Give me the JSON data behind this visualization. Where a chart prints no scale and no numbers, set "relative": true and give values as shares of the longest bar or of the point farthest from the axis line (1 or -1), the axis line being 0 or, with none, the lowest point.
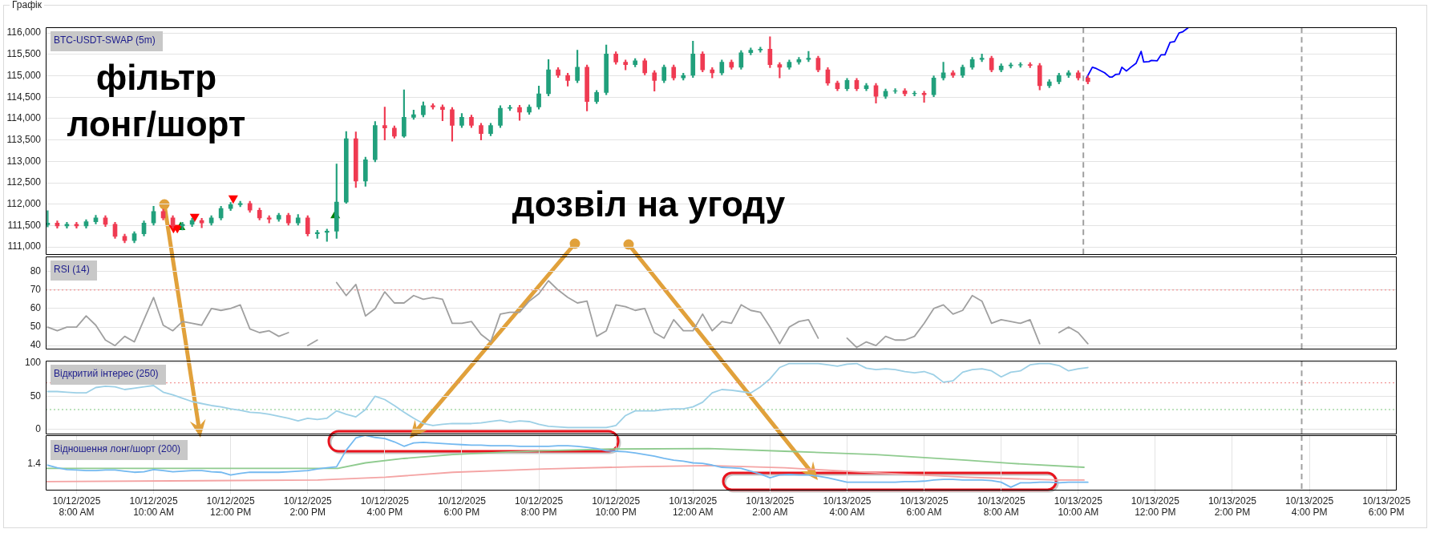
{
  "chart_data": [
    {
      "type": "candlestick",
      "title": "Графік",
      "subtitle": "BTC-USDT-SWAP (5m)",
      "x": [
        "2025-10-12T07:15",
        "2025-10-12T07:30",
        "2025-10-12T07:45",
        "2025-10-12T08:00",
        "2025-10-12T08:15",
        "2025-10-12T08:30",
        "2025-10-12T08:45",
        "2025-10-12T09:00",
        "2025-10-12T09:15",
        "2025-10-12T09:30",
        "2025-10-12T09:45",
        "2025-10-12T10:00",
        "2025-10-12T10:15",
        "2025-10-12T10:30",
        "2025-10-12T10:45",
        "2025-10-12T11:00",
        "2025-10-12T11:15",
        "2025-10-12T11:30",
        "2025-10-12T11:45",
        "2025-10-12T12:00",
        "2025-10-12T12:15",
        "2025-10-12T12:30",
        "2025-10-12T12:45",
        "2025-10-12T13:00",
        "2025-10-12T13:15",
        "2025-10-12T13:30",
        "2025-10-12T13:45",
        "2025-10-12T14:00",
        "2025-10-12T14:15",
        "2025-10-12T14:30",
        "2025-10-12T14:45",
        "2025-10-12T15:00",
        "2025-10-12T15:15",
        "2025-10-12T15:30",
        "2025-10-12T15:45",
        "2025-10-12T16:00",
        "2025-10-12T16:15",
        "2025-10-12T16:30",
        "2025-10-12T16:45",
        "2025-10-12T17:00",
        "2025-10-12T17:15",
        "2025-10-12T17:30",
        "2025-10-12T17:45",
        "2025-10-12T18:00",
        "2025-10-12T18:15",
        "2025-10-12T18:30",
        "2025-10-12T18:45",
        "2025-10-12T19:00",
        "2025-10-12T19:15",
        "2025-10-12T19:30",
        "2025-10-12T19:45",
        "2025-10-12T20:00",
        "2025-10-12T20:15",
        "2025-10-12T20:30",
        "2025-10-12T20:45",
        "2025-10-12T21:00",
        "2025-10-12T21:15",
        "2025-10-12T21:30",
        "2025-10-12T21:45",
        "2025-10-12T22:00",
        "2025-10-12T22:15",
        "2025-10-12T22:30",
        "2025-10-12T22:45",
        "2025-10-12T23:00",
        "2025-10-12T23:15",
        "2025-10-12T23:30",
        "2025-10-12T23:45",
        "2025-10-13T00:00",
        "2025-10-13T00:15",
        "2025-10-13T00:30",
        "2025-10-13T00:45",
        "2025-10-13T01:00",
        "2025-10-13T01:15",
        "2025-10-13T01:30",
        "2025-10-13T01:45",
        "2025-10-13T02:00",
        "2025-10-13T02:15",
        "2025-10-13T02:30",
        "2025-10-13T02:45",
        "2025-10-13T03:00",
        "2025-10-13T03:15",
        "2025-10-13T03:30",
        "2025-10-13T03:45",
        "2025-10-13T04:00",
        "2025-10-13T04:15",
        "2025-10-13T04:30",
        "2025-10-13T04:45",
        "2025-10-13T05:00",
        "2025-10-13T05:15",
        "2025-10-13T05:30",
        "2025-10-13T05:45",
        "2025-10-13T06:00",
        "2025-10-13T06:15",
        "2025-10-13T06:30",
        "2025-10-13T06:45",
        "2025-10-13T07:00",
        "2025-10-13T07:15",
        "2025-10-13T07:30",
        "2025-10-13T07:45",
        "2025-10-13T08:00",
        "2025-10-13T08:15",
        "2025-10-13T08:30",
        "2025-10-13T08:45",
        "2025-10-13T09:00",
        "2025-10-13T09:15",
        "2025-10-13T09:30",
        "2025-10-13T09:45",
        "2025-10-13T10:00",
        "2025-10-13T10:15"
      ],
      "ohlc": [
        [
          111520,
          111850,
          111470,
          111560
        ],
        [
          111560,
          111610,
          111440,
          111490
        ],
        [
          111490,
          111580,
          111440,
          111530
        ],
        [
          111530,
          111580,
          111440,
          111490
        ],
        [
          111490,
          111640,
          111440,
          111590
        ],
        [
          111590,
          111740,
          111540,
          111680
        ],
        [
          111680,
          111730,
          111480,
          111530
        ],
        [
          111530,
          111580,
          111200,
          111250
        ],
        [
          111250,
          111300,
          111100,
          111150
        ],
        [
          111150,
          111360,
          111100,
          111310
        ],
        [
          111310,
          111610,
          111260,
          111560
        ],
        [
          111560,
          111950,
          111510,
          111830
        ],
        [
          111830,
          111880,
          111630,
          111680
        ],
        [
          111680,
          111730,
          111440,
          111490
        ],
        [
          111490,
          111580,
          111400,
          111530
        ],
        [
          111530,
          111670,
          111480,
          111620
        ],
        [
          111620,
          111670,
          111450,
          111560
        ],
        [
          111560,
          111730,
          111510,
          111680
        ],
        [
          111680,
          111950,
          111630,
          111900
        ],
        [
          111900,
          112040,
          111850,
          111990
        ],
        [
          111990,
          112070,
          111940,
          112020
        ],
        [
          112020,
          112070,
          111810,
          111860
        ],
        [
          111860,
          111910,
          111630,
          111680
        ],
        [
          111680,
          111730,
          111560,
          111650
        ],
        [
          111650,
          111790,
          111600,
          111740
        ],
        [
          111740,
          111790,
          111510,
          111560
        ],
        [
          111560,
          111760,
          111510,
          111680
        ],
        [
          111680,
          111730,
          111260,
          111310
        ],
        [
          111310,
          111390,
          111200,
          111340
        ],
        [
          111340,
          111420,
          111130,
          111370
        ],
        [
          111370,
          112940,
          111200,
          112050
        ],
        [
          112050,
          113700,
          112020,
          113530
        ],
        [
          113530,
          113690,
          112390,
          112540
        ],
        [
          112540,
          113100,
          112420,
          113040
        ],
        [
          113040,
          113930,
          112990,
          113840
        ],
        [
          113840,
          114270,
          113500,
          113780
        ],
        [
          113780,
          113830,
          113540,
          113590
        ],
        [
          113590,
          114670,
          113560,
          114030
        ],
        [
          114030,
          114200,
          113980,
          114090
        ],
        [
          114090,
          114390,
          114040,
          114300
        ],
        [
          114300,
          114350,
          114220,
          114270
        ],
        [
          114270,
          114320,
          113950,
          114210
        ],
        [
          114210,
          114260,
          113470,
          113840
        ],
        [
          113840,
          114120,
          113790,
          114030
        ],
        [
          114030,
          114080,
          113790,
          113840
        ],
        [
          113840,
          113890,
          113500,
          113650
        ],
        [
          113650,
          113890,
          113600,
          113840
        ],
        [
          113840,
          114300,
          113790,
          114240
        ],
        [
          114240,
          114310,
          114190,
          114260
        ],
        [
          114260,
          114310,
          113960,
          114150
        ],
        [
          114150,
          114320,
          114100,
          114270
        ],
        [
          114270,
          114760,
          114220,
          114580
        ],
        [
          114580,
          115380,
          114530,
          115140
        ],
        [
          115140,
          115190,
          114960,
          115010
        ],
        [
          115010,
          115060,
          114760,
          114890
        ],
        [
          114890,
          115600,
          114840,
          115200
        ],
        [
          115200,
          115250,
          114180,
          114400
        ],
        [
          114400,
          114660,
          114350,
          114610
        ],
        [
          114610,
          115720,
          114560,
          115510
        ],
        [
          115510,
          115560,
          115270,
          115320
        ],
        [
          115320,
          115370,
          115140,
          115260
        ],
        [
          115260,
          115400,
          115210,
          115350
        ],
        [
          115350,
          115400,
          115020,
          115070
        ],
        [
          115070,
          115120,
          114640,
          114890
        ],
        [
          114890,
          115250,
          114840,
          115200
        ],
        [
          115200,
          115250,
          114900,
          114950
        ],
        [
          114950,
          115060,
          114900,
          115010
        ],
        [
          115010,
          115810,
          114960,
          115510
        ],
        [
          115510,
          115560,
          115090,
          115140
        ],
        [
          115140,
          115190,
          114950,
          115070
        ],
        [
          115070,
          115370,
          115020,
          115320
        ],
        [
          115320,
          115370,
          115150,
          115200
        ],
        [
          115200,
          115590,
          115150,
          115540
        ],
        [
          115540,
          115650,
          115490,
          115600
        ],
        [
          115600,
          115670,
          115550,
          115620
        ],
        [
          115620,
          115910,
          115190,
          115260
        ],
        [
          115260,
          115310,
          114950,
          115200
        ],
        [
          115200,
          115370,
          115150,
          115320
        ],
        [
          115320,
          115430,
          115270,
          115380
        ],
        [
          115380,
          115570,
          115330,
          115410
        ],
        [
          115410,
          115460,
          115090,
          115140
        ],
        [
          115140,
          115190,
          114780,
          114830
        ],
        [
          114830,
          114880,
          114650,
          114700
        ],
        [
          114700,
          114940,
          114650,
          114890
        ],
        [
          114890,
          114940,
          114650,
          114700
        ],
        [
          114700,
          114820,
          114650,
          114770
        ],
        [
          114770,
          114820,
          114360,
          114520
        ],
        [
          114520,
          114690,
          114470,
          114640
        ],
        [
          114640,
          114700,
          114590,
          114650
        ],
        [
          114650,
          114700,
          114530,
          114580
        ],
        [
          114580,
          114640,
          114530,
          114590
        ],
        [
          114590,
          114640,
          114380,
          114560
        ],
        [
          114560,
          115000,
          114510,
          114950
        ],
        [
          114950,
          115320,
          114900,
          115070
        ],
        [
          115070,
          115120,
          114960,
          115010
        ],
        [
          115010,
          115250,
          114960,
          115200
        ],
        [
          115200,
          115430,
          115150,
          115380
        ],
        [
          115380,
          115510,
          115330,
          115410
        ],
        [
          115410,
          115460,
          115090,
          115140
        ],
        [
          115140,
          115280,
          115090,
          115230
        ],
        [
          115230,
          115300,
          115180,
          115250
        ],
        [
          115250,
          115310,
          115200,
          115260
        ],
        [
          115260,
          115310,
          115190,
          115240
        ],
        [
          115240,
          115290,
          114670,
          114770
        ],
        [
          114770,
          114910,
          114720,
          114860
        ],
        [
          114860,
          115060,
          114810,
          115010
        ],
        [
          115010,
          115120,
          114960,
          115070
        ],
        [
          115070,
          115120,
          114900,
          114950
        ],
        [
          114950,
          115000,
          114810,
          114860
        ]
      ],
      "colors": [
        "#21a07c",
        "#ef3b52",
        "#21a07c",
        "#ef3b52",
        "#21a07c",
        "#21a07c",
        "#ef3b52",
        "#ef3b52",
        "#ef3b52",
        "#21a07c",
        "#21a07c",
        "#21a07c",
        "#ef3b52",
        "#ef3b52",
        "#21a07c",
        "#21a07c",
        "#ef3b52",
        "#21a07c",
        "#21a07c",
        "#21a07c",
        "#21a07c",
        "#ef3b52",
        "#ef3b52",
        "#ef3b52",
        "#21a07c",
        "#ef3b52",
        "#21a07c",
        "#ef3b52",
        "#21a07c",
        "#21a07c",
        "#21a07c",
        "#21a07c",
        "#ef3b52",
        "#21a07c",
        "#21a07c",
        "#ef3b52",
        "#ef3b52",
        "#21a07c",
        "#21a07c",
        "#21a07c",
        "#ef3b52",
        "#ef3b52",
        "#ef3b52",
        "#21a07c",
        "#ef3b52",
        "#ef3b52",
        "#21a07c",
        "#21a07c",
        "#21a07c",
        "#ef3b52",
        "#21a07c",
        "#21a07c",
        "#21a07c",
        "#ef3b52",
        "#ef3b52",
        "#21a07c",
        "#ef3b52",
        "#21a07c",
        "#21a07c",
        "#ef3b52",
        "#ef3b52",
        "#21a07c",
        "#ef3b52",
        "#ef3b52",
        "#21a07c",
        "#ef3b52",
        "#21a07c",
        "#21a07c",
        "#ef3b52",
        "#ef3b52",
        "#21a07c",
        "#ef3b52",
        "#21a07c",
        "#21a07c",
        "#21a07c",
        "#ef3b52",
        "#ef3b52",
        "#21a07c",
        "#21a07c",
        "#21a07c",
        "#ef3b52",
        "#ef3b52",
        "#ef3b52",
        "#21a07c",
        "#ef3b52",
        "#21a07c",
        "#ef3b52",
        "#21a07c",
        "#21a07c",
        "#ef3b52",
        "#21a07c",
        "#ef3b52",
        "#21a07c",
        "#21a07c",
        "#ef3b52",
        "#21a07c",
        "#21a07c",
        "#21a07c",
        "#ef3b52",
        "#21a07c",
        "#21a07c",
        "#21a07c",
        "#ef3b52",
        "#ef3b52",
        "#21a07c",
        "#21a07c",
        "#21a07c",
        "#ef3b52",
        "#ef3b52"
      ],
      "series": [
        {
          "type": "line",
          "color": "#0000ff",
          "x": [
            "2025-10-13T10:13",
            "2025-10-13T10:22",
            "2025-10-13T10:28",
            "2025-10-13T10:41",
            "2025-10-13T10:49",
            "2025-10-13T10:53",
            "2025-10-13T10:58",
            "2025-10-13T11:04",
            "2025-10-13T11:08",
            "2025-10-13T11:15",
            "2025-10-13T11:22",
            "2025-10-13T11:30",
            "2025-10-13T11:38",
            "2025-10-13T11:42",
            "2025-10-13T11:50",
            "2025-10-13T11:54",
            "2025-10-13T12:03",
            "2025-10-13T12:09",
            "2025-10-13T12:15",
            "2025-10-13T12:23",
            "2025-10-13T12:30",
            "2025-10-13T12:37",
            "2025-10-13T12:43",
            "2025-10-13T12:51"
          ],
          "values": [
            114950,
            115200,
            115170,
            115070,
            114970,
            114970,
            115030,
            115040,
            115200,
            115110,
            115200,
            115290,
            115570,
            115320,
            115330,
            115360,
            115350,
            115490,
            115490,
            115780,
            115800,
            116000,
            116030,
            116120
          ]
        },
        {
          "type": "scatter",
          "color": "#ff0000",
          "marker": "triangle-down",
          "x": [
            "2025-10-12T10:31",
            "2025-10-12T10:37",
            "2025-10-12T11:04",
            "2025-10-12T12:04"
          ],
          "values": [
            111450,
            111450,
            111710,
            112140
          ]
        },
        {
          "type": "scatter",
          "color": "#008000",
          "marker": "triangle",
          "x": [
            "2025-10-12T10:42",
            "2025-10-12T14:43"
          ],
          "values": [
            111460,
            111740
          ]
        }
      ],
      "xlim": [
        "2025-10-12T07:12",
        "2025-10-13T18:16"
      ],
      "ylim": [
        110820,
        116130
      ],
      "yticks": [
        {
          "value": 111000,
          "label": "111,000"
        },
        {
          "value": 111500,
          "label": "111,500"
        },
        {
          "value": 112000,
          "label": "112,000"
        },
        {
          "value": 112500,
          "label": "112,500"
        },
        {
          "value": 113000,
          "label": "113,000"
        },
        {
          "value": 113500,
          "label": "113,500"
        },
        {
          "value": 114000,
          "label": "114,000"
        },
        {
          "value": 114500,
          "label": "114,500"
        },
        {
          "value": 115000,
          "label": "115,000"
        },
        {
          "value": 115500,
          "label": "115,500"
        },
        {
          "value": 116000,
          "label": "116,000"
        }
      ],
      "grid": "y",
      "tick_labels": "y",
      "ref_lines": [
        {
          "axis": "x",
          "value": "2025-10-13T10:08",
          "color": "#a0a0a0",
          "line_style": "dashed"
        },
        {
          "axis": "x",
          "value": "2025-10-13T15:48",
          "color": "#a0a0a0",
          "line_style": "dashed"
        }
      ],
      "annotations": [
        "фільтр лонг/шорт",
        "дозвіл на угоду"
      ]
    },
    {
      "type": "line",
      "title": "RSI (14)",
      "x": [
        "2025-10-12T07:15",
        "2025-10-12T07:30",
        "2025-10-12T07:45",
        "2025-10-12T08:00",
        "2025-10-12T08:15",
        "2025-10-12T08:30",
        "2025-10-12T08:45",
        "2025-10-12T09:00",
        "2025-10-12T09:15",
        "2025-10-12T09:30",
        "2025-10-12T09:45",
        "2025-10-12T10:00",
        "2025-10-12T10:15",
        "2025-10-12T10:30",
        "2025-10-12T10:45",
        "2025-10-12T11:00",
        "2025-10-12T11:15",
        "2025-10-12T11:30",
        "2025-10-12T11:45",
        "2025-10-12T12:00",
        "2025-10-12T12:15",
        "2025-10-12T12:30",
        "2025-10-12T12:45",
        "2025-10-12T13:00",
        "2025-10-12T13:15",
        "2025-10-12T13:30",
        "2025-10-12T13:45",
        "2025-10-12T14:00",
        "2025-10-12T14:15",
        "2025-10-12T14:30",
        "2025-10-12T14:45",
        "2025-10-12T15:00",
        "2025-10-12T15:15",
        "2025-10-12T15:30",
        "2025-10-12T15:45",
        "2025-10-12T16:00",
        "2025-10-12T16:15",
        "2025-10-12T16:30",
        "2025-10-12T16:45",
        "2025-10-12T17:00",
        "2025-10-12T17:15",
        "2025-10-12T17:30",
        "2025-10-12T17:45",
        "2025-10-12T18:00",
        "2025-10-12T18:15",
        "2025-10-12T18:30",
        "2025-10-12T18:45",
        "2025-10-12T19:00",
        "2025-10-12T19:15",
        "2025-10-12T19:30",
        "2025-10-12T19:45",
        "2025-10-12T20:00",
        "2025-10-12T20:15",
        "2025-10-12T20:30",
        "2025-10-12T20:45",
        "2025-10-12T21:00",
        "2025-10-12T21:15",
        "2025-10-12T21:30",
        "2025-10-12T21:45",
        "2025-10-12T22:00",
        "2025-10-12T22:15",
        "2025-10-12T22:30",
        "2025-10-12T22:45",
        "2025-10-12T23:00",
        "2025-10-12T23:15",
        "2025-10-12T23:30",
        "2025-10-12T23:45",
        "2025-10-13T00:00",
        "2025-10-13T00:15",
        "2025-10-13T00:30",
        "2025-10-13T00:45",
        "2025-10-13T01:00",
        "2025-10-13T01:15",
        "2025-10-13T01:30",
        "2025-10-13T01:45",
        "2025-10-13T02:00",
        "2025-10-13T02:15",
        "2025-10-13T02:30",
        "2025-10-13T02:45",
        "2025-10-13T03:00",
        "2025-10-13T03:15",
        "2025-10-13T03:30",
        "2025-10-13T03:45",
        "2025-10-13T04:00",
        "2025-10-13T04:15",
        "2025-10-13T04:30",
        "2025-10-13T04:45",
        "2025-10-13T05:00",
        "2025-10-13T05:15",
        "2025-10-13T05:30",
        "2025-10-13T05:45",
        "2025-10-13T06:00",
        "2025-10-13T06:15",
        "2025-10-13T06:30",
        "2025-10-13T06:45",
        "2025-10-13T07:00",
        "2025-10-13T07:15",
        "2025-10-13T07:30",
        "2025-10-13T07:45",
        "2025-10-13T08:00",
        "2025-10-13T08:15",
        "2025-10-13T08:30",
        "2025-10-13T08:45",
        "2025-10-13T09:00",
        "2025-10-13T09:15",
        "2025-10-13T09:30",
        "2025-10-13T09:45",
        "2025-10-13T10:00",
        "2025-10-13T10:15"
      ],
      "series": [
        {
          "color": "#a0a0a0",
          "values": [
            50,
            48,
            50,
            50,
            56,
            51,
            43,
            40,
            45,
            42,
            54,
            66,
            51,
            48,
            53,
            52,
            51,
            60,
            59,
            60,
            62,
            49,
            47,
            48,
            45,
            47,
            null,
            40,
            43,
            null,
            74,
            67,
            73,
            56,
            60,
            69,
            63,
            63,
            67,
            65,
            66,
            65,
            52,
            52,
            53,
            46,
            42,
            57,
            58,
            58,
            64,
            68,
            75,
            70,
            66,
            63,
            64,
            45,
            48,
            62,
            61,
            59,
            60,
            47,
            44,
            54,
            48,
            48,
            57,
            48,
            53,
            52,
            62,
            59,
            58,
            50,
            41,
            50,
            53,
            54,
            44,
            null,
            null,
            44,
            39,
            42,
            40,
            45,
            43,
            43,
            45,
            52,
            60,
            62,
            57,
            59,
            67,
            64,
            52,
            54,
            53,
            52,
            54,
            41,
            null,
            47,
            50,
            47,
            41
          ]
        }
      ],
      "xlim": [
        "2025-10-12T07:12",
        "2025-10-13T18:16"
      ],
      "ylim": [
        38,
        88
      ],
      "yticks": [
        40,
        50,
        60,
        70,
        80
      ],
      "grid": "y",
      "tick_labels": "y",
      "ref_lines": [
        {
          "axis": "y",
          "value": 70,
          "color": "#f08080",
          "line_style": "dotted"
        },
        {
          "axis": "x",
          "value": "2025-10-13T15:48",
          "color": "#a0a0a0",
          "line_style": "dashed"
        }
      ]
    },
    {
      "type": "line",
      "title": "Відкритий інтерес (250)",
      "x": [
        "2025-10-12T07:15",
        "2025-10-12T07:30",
        "2025-10-12T07:45",
        "2025-10-12T08:00",
        "2025-10-12T08:15",
        "2025-10-12T08:30",
        "2025-10-12T08:45",
        "2025-10-12T09:00",
        "2025-10-12T09:15",
        "2025-10-12T09:30",
        "2025-10-12T09:45",
        "2025-10-12T10:00",
        "2025-10-12T10:15",
        "2025-10-12T10:30",
        "2025-10-12T10:45",
        "2025-10-12T11:00",
        "2025-10-12T11:15",
        "2025-10-12T11:30",
        "2025-10-12T11:45",
        "2025-10-12T12:00",
        "2025-10-12T12:15",
        "2025-10-12T12:30",
        "2025-10-12T12:45",
        "2025-10-12T13:00",
        "2025-10-12T13:15",
        "2025-10-12T13:30",
        "2025-10-12T13:45",
        "2025-10-12T14:00",
        "2025-10-12T14:15",
        "2025-10-12T14:30",
        "2025-10-12T14:45",
        "2025-10-12T15:00",
        "2025-10-12T15:15",
        "2025-10-12T15:30",
        "2025-10-12T15:45",
        "2025-10-12T16:00",
        "2025-10-12T16:15",
        "2025-10-12T16:30",
        "2025-10-12T16:45",
        "2025-10-12T17:00",
        "2025-10-12T17:15",
        "2025-10-12T17:30",
        "2025-10-12T17:45",
        "2025-10-12T18:00",
        "2025-10-12T18:15",
        "2025-10-12T18:30",
        "2025-10-12T18:45",
        "2025-10-12T19:00",
        "2025-10-12T19:15",
        "2025-10-12T19:30",
        "2025-10-12T19:45",
        "2025-10-12T20:00",
        "2025-10-12T20:15",
        "2025-10-12T20:30",
        "2025-10-12T20:45",
        "2025-10-12T21:00",
        "2025-10-12T21:15",
        "2025-10-12T21:30",
        "2025-10-12T21:45",
        "2025-10-12T22:00",
        "2025-10-12T22:15",
        "2025-10-12T22:30",
        "2025-10-12T22:45",
        "2025-10-12T23:00",
        "2025-10-12T23:15",
        "2025-10-12T23:30",
        "2025-10-12T23:45",
        "2025-10-13T00:00",
        "2025-10-13T00:15",
        "2025-10-13T00:30",
        "2025-10-13T00:45",
        "2025-10-13T01:00",
        "2025-10-13T01:15",
        "2025-10-13T01:30",
        "2025-10-13T01:45",
        "2025-10-13T02:00",
        "2025-10-13T02:15",
        "2025-10-13T02:30",
        "2025-10-13T02:45",
        "2025-10-13T03:00",
        "2025-10-13T03:15",
        "2025-10-13T03:30",
        "2025-10-13T03:45",
        "2025-10-13T04:00",
        "2025-10-13T04:15",
        "2025-10-13T04:30",
        "2025-10-13T04:45",
        "2025-10-13T05:00",
        "2025-10-13T05:15",
        "2025-10-13T05:30",
        "2025-10-13T05:45",
        "2025-10-13T06:00",
        "2025-10-13T06:15",
        "2025-10-13T06:30",
        "2025-10-13T06:45",
        "2025-10-13T07:00",
        "2025-10-13T07:15",
        "2025-10-13T07:30",
        "2025-10-13T07:45",
        "2025-10-13T08:00",
        "2025-10-13T08:15",
        "2025-10-13T08:30",
        "2025-10-13T08:45",
        "2025-10-13T09:00",
        "2025-10-13T09:15",
        "2025-10-13T09:30",
        "2025-10-13T09:45",
        "2025-10-13T10:00",
        "2025-10-13T10:15"
      ],
      "series": [
        {
          "color": "#9dd0e6",
          "values": [
            57,
            57,
            56,
            55,
            55,
            63,
            65,
            64,
            60,
            62,
            64,
            66,
            56,
            52,
            47,
            42,
            39,
            36,
            34,
            31,
            29,
            26,
            25,
            23,
            20,
            17,
            13,
            17,
            15,
            17,
            28,
            23,
            19,
            30,
            50,
            45,
            36,
            26,
            17,
            9,
            6,
            8,
            9,
            9,
            9,
            10,
            12,
            14,
            11,
            13,
            12,
            8,
            5,
            4,
            3,
            3,
            3,
            3,
            3,
            6,
            21,
            28,
            28,
            28,
            30,
            31,
            31,
            34,
            41,
            55,
            60,
            59,
            57,
            55,
            64,
            76,
            93,
            99,
            99,
            99,
            99,
            97,
            95,
            98,
            99,
            92,
            90,
            91,
            90,
            87,
            85,
            87,
            82,
            71,
            73,
            86,
            90,
            91,
            88,
            79,
            86,
            88,
            97,
            99,
            99,
            96,
            88,
            91,
            93
          ]
        }
      ],
      "xlim": [
        "2025-10-12T07:12",
        "2025-10-13T18:16"
      ],
      "ylim": [
        -7,
        103
      ],
      "yticks": [
        0,
        50,
        100
      ],
      "grid": "y",
      "tick_labels": "y",
      "ref_lines": [
        {
          "axis": "y",
          "value": 70,
          "color": "#f08080",
          "line_style": "dotted"
        },
        {
          "axis": "y",
          "value": 30,
          "color": "#7cc47c",
          "line_style": "dotted"
        },
        {
          "axis": "x",
          "value": "2025-10-13T15:48",
          "color": "#a0a0a0",
          "line_style": "dashed"
        }
      ]
    },
    {
      "type": "line",
      "title": "Відношення лонг/шорт (200)",
      "relative": true,
      "x": [
        "2025-10-12T07:15",
        "2025-10-12T07:30",
        "2025-10-12T07:45",
        "2025-10-12T08:00",
        "2025-10-12T08:15",
        "2025-10-12T08:30",
        "2025-10-12T08:45",
        "2025-10-12T09:00",
        "2025-10-12T09:15",
        "2025-10-12T09:30",
        "2025-10-12T09:45",
        "2025-10-12T10:00",
        "2025-10-12T10:15",
        "2025-10-12T10:30",
        "2025-10-12T10:45",
        "2025-10-12T11:00",
        "2025-10-12T11:15",
        "2025-10-12T11:30",
        "2025-10-12T11:45",
        "2025-10-12T12:00",
        "2025-10-12T12:15",
        "2025-10-12T12:30",
        "2025-10-12T12:45",
        "2025-10-12T13:00",
        "2025-10-12T13:15",
        "2025-10-12T13:30",
        "2025-10-12T13:45",
        "2025-10-12T14:00",
        "2025-10-12T14:15",
        "2025-10-12T14:30",
        "2025-10-12T14:45",
        "2025-10-12T15:00",
        "2025-10-12T15:15",
        "2025-10-12T15:30",
        "2025-10-12T15:45",
        "2025-10-12T16:00",
        "2025-10-12T16:15",
        "2025-10-12T16:30",
        "2025-10-12T16:45",
        "2025-10-12T17:00",
        "2025-10-12T17:15",
        "2025-10-12T17:30",
        "2025-10-12T17:45",
        "2025-10-12T18:00",
        "2025-10-12T18:15",
        "2025-10-12T18:30",
        "2025-10-12T18:45",
        "2025-10-12T19:00",
        "2025-10-12T19:15",
        "2025-10-12T19:30",
        "2025-10-12T19:45",
        "2025-10-12T20:00",
        "2025-10-12T20:15",
        "2025-10-12T20:30",
        "2025-10-12T20:45",
        "2025-10-12T21:00",
        "2025-10-12T21:15",
        "2025-10-12T21:30",
        "2025-10-12T21:45",
        "2025-10-12T22:00",
        "2025-10-12T22:15",
        "2025-10-12T22:30",
        "2025-10-12T22:45",
        "2025-10-12T23:00",
        "2025-10-12T23:15",
        "2025-10-12T23:30",
        "2025-10-12T23:45",
        "2025-10-13T00:00",
        "2025-10-13T00:15",
        "2025-10-13T00:30",
        "2025-10-13T00:45",
        "2025-10-13T01:00",
        "2025-10-13T01:15",
        "2025-10-13T01:30",
        "2025-10-13T01:45",
        "2025-10-13T02:00",
        "2025-10-13T02:15",
        "2025-10-13T02:30",
        "2025-10-13T02:45",
        "2025-10-13T03:00",
        "2025-10-13T03:15",
        "2025-10-13T03:30",
        "2025-10-13T03:45",
        "2025-10-13T04:00",
        "2025-10-13T04:15",
        "2025-10-13T04:30",
        "2025-10-13T04:45",
        "2025-10-13T05:00",
        "2025-10-13T05:15",
        "2025-10-13T05:30",
        "2025-10-13T05:45",
        "2025-10-13T06:00",
        "2025-10-13T06:15",
        "2025-10-13T06:30",
        "2025-10-13T06:45",
        "2025-10-13T07:00",
        "2025-10-13T07:15",
        "2025-10-13T07:30",
        "2025-10-13T07:45",
        "2025-10-13T08:00",
        "2025-10-13T08:15",
        "2025-10-13T08:30",
        "2025-10-13T08:45",
        "2025-10-13T09:00",
        "2025-10-13T09:15",
        "2025-10-13T09:30",
        "2025-10-13T09:45",
        "2025-10-13T10:00",
        "2025-10-13T10:15"
      ],
      "series": [
        {
          "color": "#74b9f0",
          "values": [
            0.46,
            0.41,
            0.38,
            0.37,
            0.36,
            0.36,
            0.37,
            0.37,
            0.35,
            0.33,
            0.34,
            0.38,
            0.36,
            0.34,
            0.35,
            0.36,
            0.36,
            0.34,
            0.33,
            0.28,
            0.31,
            0.33,
            0.33,
            0.33,
            0.33,
            0.34,
            0.35,
            0.36,
            0.39,
            0.41,
            0.43,
            0.73,
            0.95,
            1,
            0.96,
            0.94,
            0.88,
            0.8,
            0.86,
            0.87,
            0.86,
            0.85,
            0.84,
            0.83,
            0.82,
            0.82,
            0.81,
            0.81,
            0.81,
            0.8,
            0.8,
            0.8,
            0.8,
            0.81,
            0.81,
            0.8,
            0.78,
            0.76,
            0.72,
            0.71,
            0.7,
            0.68,
            0.65,
            0.62,
            0.58,
            0.55,
            0.53,
            0.5,
            0.49,
            0.46,
            0.42,
            0.41,
            0.4,
            0.35,
            0.3,
            0.23,
            0.28,
            0.29,
            0.28,
            0.28,
            0.26,
            0.23,
            0.19,
            0.15,
            0.15,
            0.15,
            0.15,
            0.15,
            0.15,
            0.16,
            0.16,
            0.17,
            0.19,
            0.2,
            0.2,
            0.19,
            0.19,
            0.19,
            0.18,
            0.15,
            0.06,
            0.14,
            0.14,
            0.15,
            0.15,
            0.14,
            0.15,
            0.15,
            0.15
          ]
        },
        {
          "color": "#8fcb8f",
          "x": [
            "2025-10-12T07:14",
            "2025-10-12T14:47",
            "2025-10-12T15:30",
            "2025-10-12T16:30",
            "2025-10-12T17:46",
            "2025-10-12T19:00",
            "2025-10-12T20:07",
            "2025-10-12T21:52",
            "2025-10-13T00:25",
            "2025-10-13T02:23",
            "2025-10-13T04:44",
            "2025-10-13T07:05",
            "2025-10-13T08:16",
            "2025-10-13T10:09"
          ],
          "values": [
            0.4,
            0.4,
            0.5,
            0.58,
            0.65,
            0.69,
            0.72,
            0.75,
            0.76,
            0.71,
            0.65,
            0.55,
            0.49,
            0.42
          ]
        },
        {
          "color": "#f4a4a4",
          "x": [
            "2025-10-12T07:14",
            "2025-10-12T14:16",
            "2025-10-12T16:01",
            "2025-10-12T17:46",
            "2025-10-12T20:07",
            "2025-10-12T22:28",
            "2025-10-13T00:25",
            "2025-10-13T02:23",
            "2025-10-13T04:44",
            "2025-10-13T07:05",
            "2025-10-13T09:27",
            "2025-10-13T10:09"
          ],
          "values": [
            0.16,
            0.19,
            0.24,
            0.33,
            0.39,
            0.43,
            0.45,
            0.41,
            0.32,
            0.24,
            0.19,
            0.19
          ]
        }
      ],
      "xlim": [
        "2025-10-12T07:12",
        "2025-10-13T18:16"
      ],
      "xticks": [
        {
          "value": "2025-10-12T08:00",
          "label": "10/12/2025 8:00 AM"
        },
        {
          "value": "2025-10-12T10:00",
          "label": "10/12/2025 10:00 AM"
        },
        {
          "value": "2025-10-12T12:00",
          "label": "10/12/2025 12:00 PM"
        },
        {
          "value": "2025-10-12T14:00",
          "label": "10/12/2025 2:00 PM"
        },
        {
          "value": "2025-10-12T16:00",
          "label": "10/12/2025 4:00 PM"
        },
        {
          "value": "2025-10-12T18:00",
          "label": "10/12/2025 6:00 PM"
        },
        {
          "value": "2025-10-12T20:00",
          "label": "10/12/2025 8:00 PM"
        },
        {
          "value": "2025-10-12T22:00",
          "label": "10/12/2025 10:00 PM"
        },
        {
          "value": "2025-10-13T00:00",
          "label": "10/13/2025 12:00 AM"
        },
        {
          "value": "2025-10-13T02:00",
          "label": "10/13/2025 2:00 AM"
        },
        {
          "value": "2025-10-13T04:00",
          "label": "10/13/2025 4:00 AM"
        },
        {
          "value": "2025-10-13T06:00",
          "label": "10/13/2025 6:00 AM"
        },
        {
          "value": "2025-10-13T08:00",
          "label": "10/13/2025 8:00 AM"
        },
        {
          "value": "2025-10-13T10:00",
          "label": "10/13/2025 10:00 AM"
        },
        {
          "value": "2025-10-13T12:00",
          "label": "10/13/2025 12:00 PM"
        },
        {
          "value": "2025-10-13T14:00",
          "label": "10/13/2025 2:00 PM"
        },
        {
          "value": "2025-10-13T16:00",
          "label": "10/13/2025 4:00 PM"
        },
        {
          "value": "2025-10-13T18:00",
          "label": "10/13/2025 6:00 PM"
        }
      ],
      "grid": "x",
      "ref_lines": [
        {
          "axis": "x",
          "value": "2025-10-13T15:48",
          "color": "#a0a0a0",
          "line_style": "dashed"
        }
      ],
      "annotations": [
        "1.4"
      ]
    }
  ]
}
